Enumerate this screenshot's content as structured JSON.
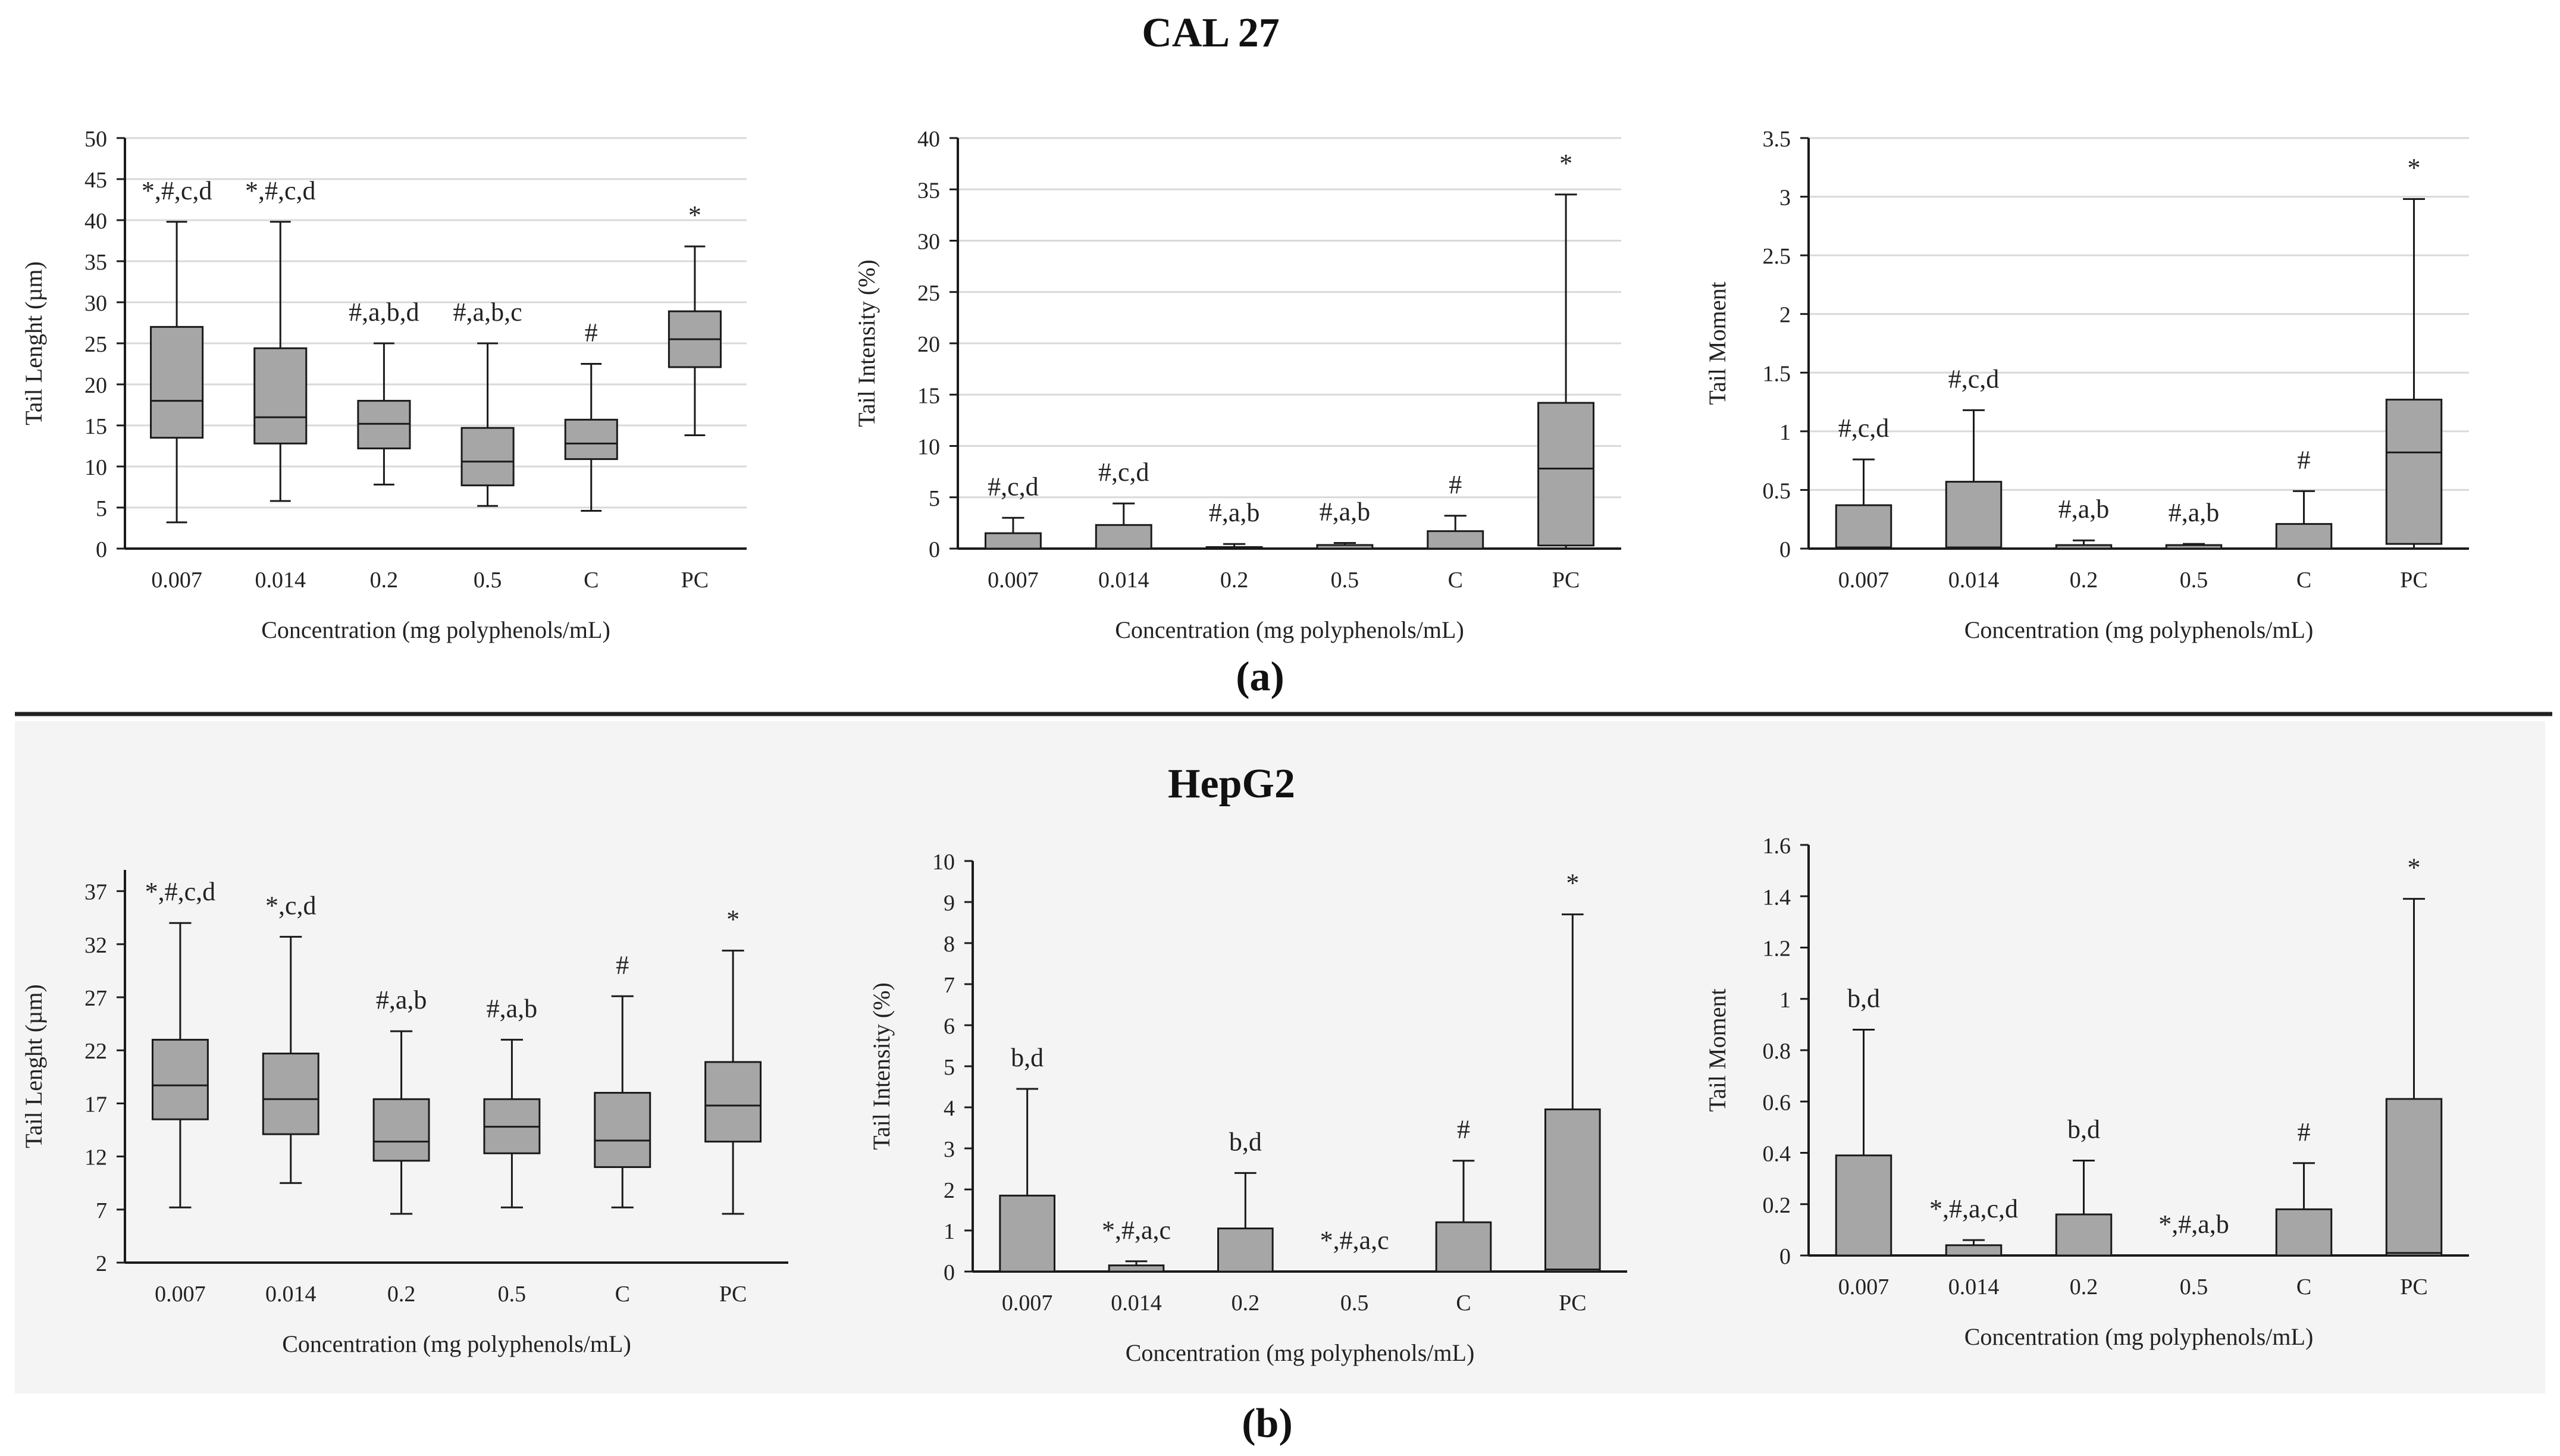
{
  "figure": {
    "section_a": {
      "title": "CAL 27",
      "tag": "(a)"
    },
    "section_b": {
      "title": "HepG2",
      "tag": "(b)"
    },
    "colors": {
      "box_fill": "#a6a6a6",
      "stroke": "#1a1a1a",
      "grid": "#d9d9d9",
      "panel_b_bg": "#f4f4f4",
      "divider": "#222222"
    }
  },
  "chart_data": [
    {
      "id": "cal27-tail-length",
      "section": "a",
      "type": "box",
      "ylabel": "Tail Lenght (µm)",
      "xlabel": "Concentration (mg polyphenols/mL)",
      "ylim": [
        0,
        50
      ],
      "yticks": [
        0,
        5,
        10,
        15,
        20,
        25,
        30,
        35,
        40,
        45,
        50
      ],
      "grid": true,
      "categories": [
        "0.007",
        "0.014",
        "0.2",
        "0.5",
        "C",
        "PC"
      ],
      "boxes": [
        {
          "min": 3.2,
          "q1": 13.5,
          "median": 18,
          "q3": 27,
          "max": 39.8
        },
        {
          "min": 5.8,
          "q1": 12.8,
          "median": 16,
          "q3": 24.4,
          "max": 39.8
        },
        {
          "min": 7.8,
          "q1": 12.2,
          "median": 15.2,
          "q3": 18,
          "max": 25
        },
        {
          "min": 5.2,
          "q1": 7.7,
          "median": 10.6,
          "q3": 14.7,
          "max": 25
        },
        {
          "min": 4.6,
          "q1": 10.9,
          "median": 12.8,
          "q3": 15.7,
          "max": 22.5
        },
        {
          "min": 13.8,
          "q1": 22.1,
          "median": 25.5,
          "q3": 28.9,
          "max": 36.8
        }
      ],
      "annotations": [
        "*,#,c,d",
        "*,#,c,d",
        "#,a,b,d",
        "#,a,b,c",
        "#",
        "*"
      ]
    },
    {
      "id": "cal27-tail-intensity",
      "section": "a",
      "type": "box",
      "ylabel": "Tail Intensity (%)",
      "xlabel": "Concentration (mg polyphenols/mL)",
      "ylim": [
        0,
        40
      ],
      "yticks": [
        0,
        5,
        10,
        15,
        20,
        25,
        30,
        35,
        40
      ],
      "grid": true,
      "categories": [
        "0.007",
        "0.014",
        "0.2",
        "0.5",
        "C",
        "PC"
      ],
      "boxes": [
        {
          "min": 0,
          "q1": 0,
          "median": 0,
          "q3": 1.5,
          "max": 3
        },
        {
          "min": 0,
          "q1": 0,
          "median": 0,
          "q3": 2.3,
          "max": 4.4
        },
        {
          "min": 0,
          "q1": 0,
          "median": 0,
          "q3": 0.15,
          "max": 0.45
        },
        {
          "min": 0,
          "q1": 0,
          "median": 0,
          "q3": 0.35,
          "max": 0.55
        },
        {
          "min": 0,
          "q1": 0,
          "median": 0,
          "q3": 1.7,
          "max": 3.2
        },
        {
          "min": 0,
          "q1": 0.3,
          "median": 7.8,
          "q3": 14.2,
          "max": 34.5
        }
      ],
      "annotations": [
        "#,c,d",
        "#,c,d",
        "#,a,b",
        "#,a,b",
        "#",
        "*"
      ]
    },
    {
      "id": "cal27-tail-moment",
      "section": "a",
      "type": "box",
      "ylabel": "Tail Moment",
      "xlabel": "Concentration (mg polyphenols/mL)",
      "ylim": [
        0,
        3.5
      ],
      "yticks": [
        0,
        0.5,
        1,
        1.5,
        2,
        2.5,
        3,
        3.5
      ],
      "grid": true,
      "categories": [
        "0.007",
        "0.014",
        "0.2",
        "0.5",
        "C",
        "PC"
      ],
      "boxes": [
        {
          "min": 0,
          "q1": 0,
          "median": 0.01,
          "q3": 0.37,
          "max": 0.76
        },
        {
          "min": 0,
          "q1": 0,
          "median": 0.01,
          "q3": 0.57,
          "max": 1.18
        },
        {
          "min": 0,
          "q1": 0,
          "median": 0,
          "q3": 0.03,
          "max": 0.07
        },
        {
          "min": 0,
          "q1": 0,
          "median": 0,
          "q3": 0.03,
          "max": 0.04
        },
        {
          "min": 0,
          "q1": 0,
          "median": 0,
          "q3": 0.21,
          "max": 0.49
        },
        {
          "min": 0,
          "q1": 0.04,
          "median": 0.82,
          "q3": 1.27,
          "max": 2.98
        }
      ],
      "annotations": [
        "#,c,d",
        "#,c,d",
        "#,a,b",
        "#,a,b",
        "#",
        "*"
      ]
    },
    {
      "id": "hepg2-tail-length",
      "section": "b",
      "type": "box",
      "ylabel": "Tail Lenght (µm)",
      "xlabel": "Concentration (mg polyphenols/mL)",
      "ylim": [
        2,
        39
      ],
      "yticks": [
        2,
        7,
        12,
        17,
        22,
        27,
        32,
        37
      ],
      "grid": false,
      "categories": [
        "0.007",
        "0.014",
        "0.2",
        "0.5",
        "C",
        "PC"
      ],
      "boxes": [
        {
          "min": 7.2,
          "q1": 15.5,
          "median": 18.7,
          "q3": 23,
          "max": 34
        },
        {
          "min": 9.5,
          "q1": 14.1,
          "median": 17.4,
          "q3": 21.7,
          "max": 32.7
        },
        {
          "min": 6.6,
          "q1": 11.6,
          "median": 13.4,
          "q3": 17.4,
          "max": 23.8
        },
        {
          "min": 7.2,
          "q1": 12.3,
          "median": 14.8,
          "q3": 17.4,
          "max": 23
        },
        {
          "min": 7.2,
          "q1": 11,
          "median": 13.5,
          "q3": 18,
          "max": 27.1
        },
        {
          "min": 6.6,
          "q1": 13.4,
          "median": 16.8,
          "q3": 20.9,
          "max": 31.4
        }
      ],
      "annotations": [
        "*,#,c,d",
        "*,c,d",
        "#,a,b",
        "#,a,b",
        "#",
        "*"
      ]
    },
    {
      "id": "hepg2-tail-intensity",
      "section": "b",
      "type": "box",
      "ylabel": "Tail Intensity (%)",
      "xlabel": "Concentration (mg polyphenols/mL)",
      "ylim": [
        0,
        10
      ],
      "yticks": [
        0,
        1,
        2,
        3,
        4,
        5,
        6,
        7,
        8,
        9,
        10
      ],
      "grid": false,
      "categories": [
        "0.007",
        "0.014",
        "0.2",
        "0.5",
        "C",
        "PC"
      ],
      "boxes": [
        {
          "min": 0,
          "q1": 0,
          "median": 0,
          "q3": 1.85,
          "max": 4.45
        },
        {
          "min": 0,
          "q1": 0,
          "median": 0,
          "q3": 0.15,
          "max": 0.25
        },
        {
          "min": 0,
          "q1": 0,
          "median": 0,
          "q3": 1.05,
          "max": 2.4
        },
        {
          "min": 0,
          "q1": 0,
          "median": 0,
          "q3": 0,
          "max": 0
        },
        {
          "min": 0,
          "q1": 0,
          "median": 0,
          "q3": 1.2,
          "max": 2.7
        },
        {
          "min": 0,
          "q1": 0,
          "median": 0.05,
          "q3": 3.95,
          "max": 8.7
        }
      ],
      "annotations": [
        "b,d",
        "*,#,a,c",
        "b,d",
        "*,#,a,c",
        "#",
        "*"
      ]
    },
    {
      "id": "hepg2-tail-moment",
      "section": "b",
      "type": "box",
      "ylabel": "Tail Moment",
      "xlabel": "Concentration (mg polyphenols/mL)",
      "ylim": [
        0,
        1.6
      ],
      "yticks": [
        0,
        0.2,
        0.4,
        0.6,
        0.8,
        1,
        1.2,
        1.4,
        1.6
      ],
      "grid": false,
      "categories": [
        "0.007",
        "0.014",
        "0.2",
        "0.5",
        "C",
        "PC"
      ],
      "boxes": [
        {
          "min": 0,
          "q1": 0,
          "median": 0,
          "q3": 0.39,
          "max": 0.88
        },
        {
          "min": 0,
          "q1": 0,
          "median": 0,
          "q3": 0.04,
          "max": 0.06
        },
        {
          "min": 0,
          "q1": 0,
          "median": 0,
          "q3": 0.16,
          "max": 0.37
        },
        {
          "min": 0,
          "q1": 0,
          "median": 0,
          "q3": 0,
          "max": 0
        },
        {
          "min": 0,
          "q1": 0,
          "median": 0,
          "q3": 0.18,
          "max": 0.36
        },
        {
          "min": 0,
          "q1": 0,
          "median": 0.01,
          "q3": 0.61,
          "max": 1.39
        }
      ],
      "annotations": [
        "b,d",
        "*,#,a,c,d",
        "b,d",
        "*,#,a,b",
        "#",
        "*"
      ]
    }
  ]
}
